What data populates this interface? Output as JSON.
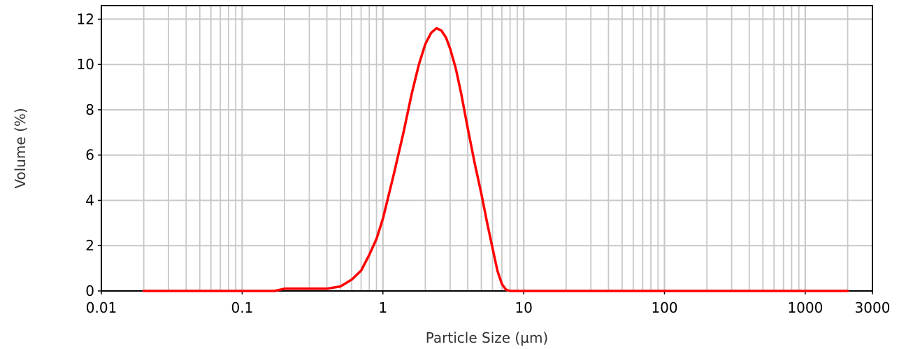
{
  "chart_data": {
    "type": "line",
    "title": "",
    "xlabel": "Particle Size (µm)",
    "ylabel": "Volume (%)",
    "x_scale": "log",
    "xlim": [
      0.01,
      3000
    ],
    "ylim": [
      0,
      12.6
    ],
    "x_ticks": [
      0.01,
      0.1,
      1,
      10,
      100,
      1000,
      3000
    ],
    "x_tick_labels": [
      "0.01",
      "0.1",
      "1",
      "10",
      "100",
      "1000",
      "3000"
    ],
    "y_ticks": [
      0,
      2,
      4,
      6,
      8,
      10,
      12
    ],
    "y_tick_labels": [
      "0",
      "2",
      "4",
      "6",
      "8",
      "10",
      "12"
    ],
    "grid": true,
    "colors": {
      "series": "#ff0000",
      "grid": "#c8c8c8",
      "frame": "#000000"
    },
    "series": [
      {
        "x": [
          0.02,
          0.1,
          0.17,
          0.2,
          0.3,
          0.4,
          0.5,
          0.6,
          0.7,
          0.8,
          0.9,
          1.0,
          1.2,
          1.4,
          1.6,
          1.8,
          2.0,
          2.2,
          2.4,
          2.6,
          2.8,
          3.0,
          3.3,
          3.6,
          4.0,
          4.5,
          5.0,
          5.5,
          6.0,
          6.5,
          7.0,
          7.5,
          8.0,
          8.5,
          9,
          20,
          100,
          1000,
          2000
        ],
        "y": [
          0,
          0,
          0,
          0.1,
          0.1,
          0.1,
          0.2,
          0.5,
          0.9,
          1.6,
          2.3,
          3.2,
          5.2,
          7.0,
          8.7,
          10.0,
          10.9,
          11.4,
          11.6,
          11.5,
          11.2,
          10.7,
          9.8,
          8.7,
          7.2,
          5.6,
          4.3,
          3.0,
          1.9,
          0.9,
          0.3,
          0.05,
          0,
          0,
          0,
          0,
          0,
          0,
          0
        ]
      }
    ]
  }
}
